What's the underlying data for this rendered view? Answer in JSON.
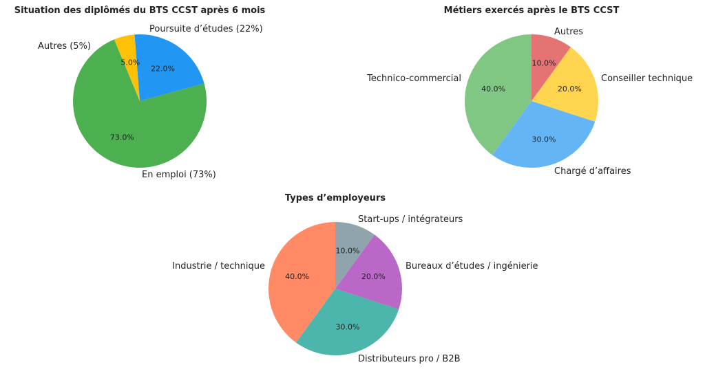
{
  "chart_data": [
    {
      "type": "pie",
      "title": "Situation des diplômés du BTS CCST après 6 mois",
      "labels": [
        "En emploi (73%)",
        "Poursuite d’études (22%)",
        "Autres (5%)"
      ],
      "values": [
        73,
        22,
        5
      ],
      "pct_labels": [
        "73.0%",
        "22.0%",
        "5.0%"
      ],
      "colors": [
        "#4caf50",
        "#2196f3",
        "#ffc107"
      ]
    },
    {
      "type": "pie",
      "title": "Métiers exercés après le BTS CCST",
      "labels": [
        "Technico-commercial",
        "Chargé d’affaires",
        "Conseiller technique",
        "Autres"
      ],
      "values": [
        40,
        30,
        20,
        10
      ],
      "pct_labels": [
        "40.0%",
        "30.0%",
        "20.0%",
        "10.0%"
      ],
      "colors": [
        "#81c784",
        "#64b5f6",
        "#ffd54f",
        "#e57373"
      ]
    },
    {
      "type": "pie",
      "title": "Types d’employeurs",
      "labels": [
        "Industrie / technique",
        "Distributeurs pro / B2B",
        "Bureaux d’études / ingénierie",
        "Start-ups / intégrateurs"
      ],
      "values": [
        40,
        30,
        20,
        10
      ],
      "pct_labels": [
        "40.0%",
        "30.0%",
        "20.0%",
        "10.0%"
      ],
      "colors": [
        "#ff8a65",
        "#4db6ac",
        "#ba68c8",
        "#90a4ae"
      ]
    }
  ]
}
